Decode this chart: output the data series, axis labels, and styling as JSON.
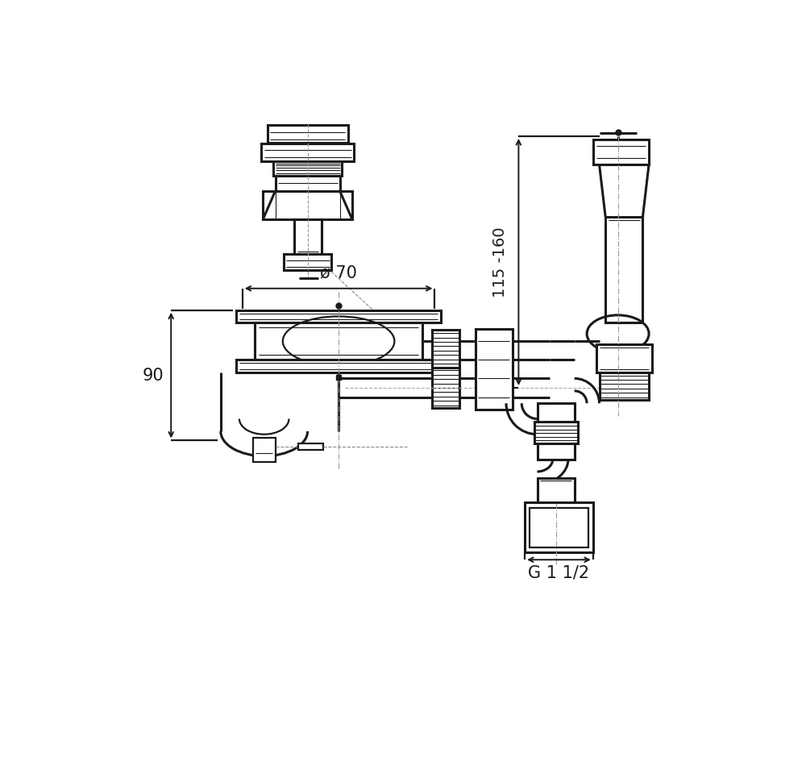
{
  "bg_color": "#ffffff",
  "line_color": "#1a1a1a",
  "lw": 1.6,
  "lw_thick": 2.2,
  "lw_thin": 0.8,
  "annotations": {
    "diameter_70": "ø 70",
    "height_90": "90",
    "height_115_160": "115 -160",
    "thread": "G 1 1/2"
  },
  "figsize": [
    10.0,
    9.6
  ],
  "dpi": 100
}
